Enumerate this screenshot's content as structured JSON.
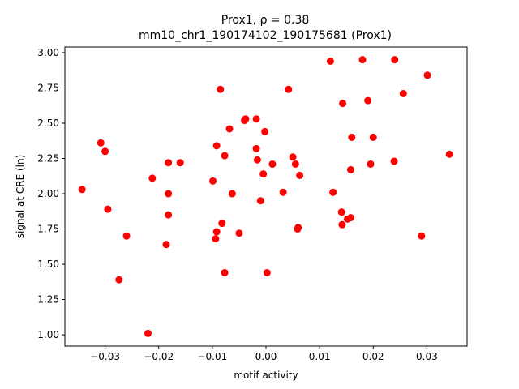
{
  "chart_data": {
    "type": "scatter",
    "title_line1": "Prox1, ρ = 0.38",
    "title_line2": "mm10_chr1_190174102_190175681 (Prox1)",
    "xlabel": "motif activity",
    "ylabel": "signal at CRE (ln)",
    "xlim": [
      -0.0375,
      0.0375
    ],
    "ylim": [
      0.92,
      3.04
    ],
    "xticks": [
      -0.03,
      -0.02,
      -0.01,
      0.0,
      0.01,
      0.02,
      0.03
    ],
    "xtick_labels": [
      "−0.03",
      "−0.02",
      "−0.01",
      "0.00",
      "0.01",
      "0.02",
      "0.03"
    ],
    "yticks": [
      1.0,
      1.25,
      1.5,
      1.75,
      2.0,
      2.25,
      2.5,
      2.75,
      3.0
    ],
    "ytick_labels": [
      "1.00",
      "1.25",
      "1.50",
      "1.75",
      "2.00",
      "2.25",
      "2.50",
      "2.75",
      "3.00"
    ],
    "grid": false,
    "marker_color": "#ff0000",
    "points": [
      {
        "x": -0.0343,
        "y": 2.03
      },
      {
        "x": -0.0308,
        "y": 2.36
      },
      {
        "x": -0.03,
        "y": 2.3
      },
      {
        "x": -0.0295,
        "y": 1.89
      },
      {
        "x": -0.0274,
        "y": 1.39
      },
      {
        "x": -0.026,
        "y": 1.7
      },
      {
        "x": -0.022,
        "y": 1.01
      },
      {
        "x": -0.0212,
        "y": 2.11
      },
      {
        "x": -0.0186,
        "y": 1.64
      },
      {
        "x": -0.0182,
        "y": 2.22
      },
      {
        "x": -0.0182,
        "y": 2.0
      },
      {
        "x": -0.0182,
        "y": 1.85
      },
      {
        "x": -0.016,
        "y": 2.22
      },
      {
        "x": -0.0099,
        "y": 2.09
      },
      {
        "x": -0.0094,
        "y": 1.68
      },
      {
        "x": -0.0092,
        "y": 1.73
      },
      {
        "x": -0.0092,
        "y": 2.34
      },
      {
        "x": -0.0085,
        "y": 2.74
      },
      {
        "x": -0.0082,
        "y": 1.79
      },
      {
        "x": -0.0077,
        "y": 1.44
      },
      {
        "x": -0.0077,
        "y": 2.27
      },
      {
        "x": -0.0068,
        "y": 2.46
      },
      {
        "x": -0.0063,
        "y": 2.0
      },
      {
        "x": -0.005,
        "y": 1.72
      },
      {
        "x": -0.004,
        "y": 2.52
      },
      {
        "x": -0.0038,
        "y": 2.53
      },
      {
        "x": -0.0018,
        "y": 2.53
      },
      {
        "x": -0.0018,
        "y": 2.32
      },
      {
        "x": -0.0016,
        "y": 2.24
      },
      {
        "x": -0.001,
        "y": 1.95
      },
      {
        "x": -0.0005,
        "y": 2.14
      },
      {
        "x": -0.0002,
        "y": 2.44
      },
      {
        "x": 0.0002,
        "y": 1.44
      },
      {
        "x": 0.0012,
        "y": 2.21
      },
      {
        "x": 0.0032,
        "y": 2.01
      },
      {
        "x": 0.0042,
        "y": 2.74
      },
      {
        "x": 0.005,
        "y": 2.26
      },
      {
        "x": 0.0055,
        "y": 2.21
      },
      {
        "x": 0.0059,
        "y": 1.75
      },
      {
        "x": 0.006,
        "y": 1.76
      },
      {
        "x": 0.0063,
        "y": 2.13
      },
      {
        "x": 0.012,
        "y": 2.94
      },
      {
        "x": 0.0125,
        "y": 2.01
      },
      {
        "x": 0.0141,
        "y": 1.87
      },
      {
        "x": 0.0142,
        "y": 1.78
      },
      {
        "x": 0.0143,
        "y": 2.64
      },
      {
        "x": 0.0152,
        "y": 1.82
      },
      {
        "x": 0.0158,
        "y": 1.83
      },
      {
        "x": 0.0158,
        "y": 2.17
      },
      {
        "x": 0.016,
        "y": 2.4
      },
      {
        "x": 0.018,
        "y": 2.95
      },
      {
        "x": 0.019,
        "y": 2.66
      },
      {
        "x": 0.0195,
        "y": 2.21
      },
      {
        "x": 0.02,
        "y": 2.4
      },
      {
        "x": 0.0239,
        "y": 2.23
      },
      {
        "x": 0.024,
        "y": 2.95
      },
      {
        "x": 0.0256,
        "y": 2.71
      },
      {
        "x": 0.029,
        "y": 1.7
      },
      {
        "x": 0.0301,
        "y": 2.84
      },
      {
        "x": 0.0342,
        "y": 2.28
      }
    ]
  }
}
